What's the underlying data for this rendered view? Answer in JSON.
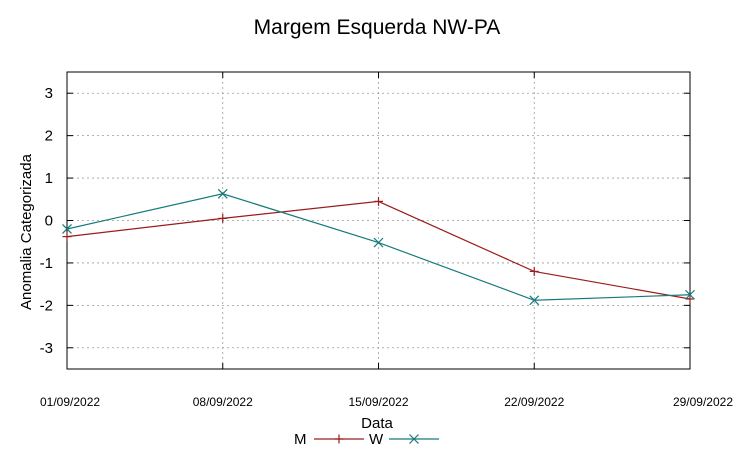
{
  "chart_data": {
    "type": "line",
    "title": "Margem Esquerda NW-PA",
    "xlabel": "Data",
    "ylabel": "Anomalia Categorizada",
    "categories": [
      "01/09/2022",
      "08/09/2022",
      "15/09/2022",
      "22/09/2022",
      "29/09/2022"
    ],
    "yticks": [
      "3",
      "2",
      "1",
      "0",
      "-1",
      "-2",
      "-3"
    ],
    "ylim": [
      -3.5,
      3.5
    ],
    "grid": true,
    "legend_position": "bottom-center",
    "series": [
      {
        "name": "M",
        "marker": "+",
        "color": "#9b1c1c",
        "values": [
          -0.38,
          0.05,
          0.45,
          -1.2,
          -1.85
        ]
      },
      {
        "name": "W",
        "marker": "x",
        "color": "#177a7a",
        "values": [
          -0.2,
          0.63,
          -0.52,
          -1.88,
          -1.75
        ]
      }
    ]
  }
}
